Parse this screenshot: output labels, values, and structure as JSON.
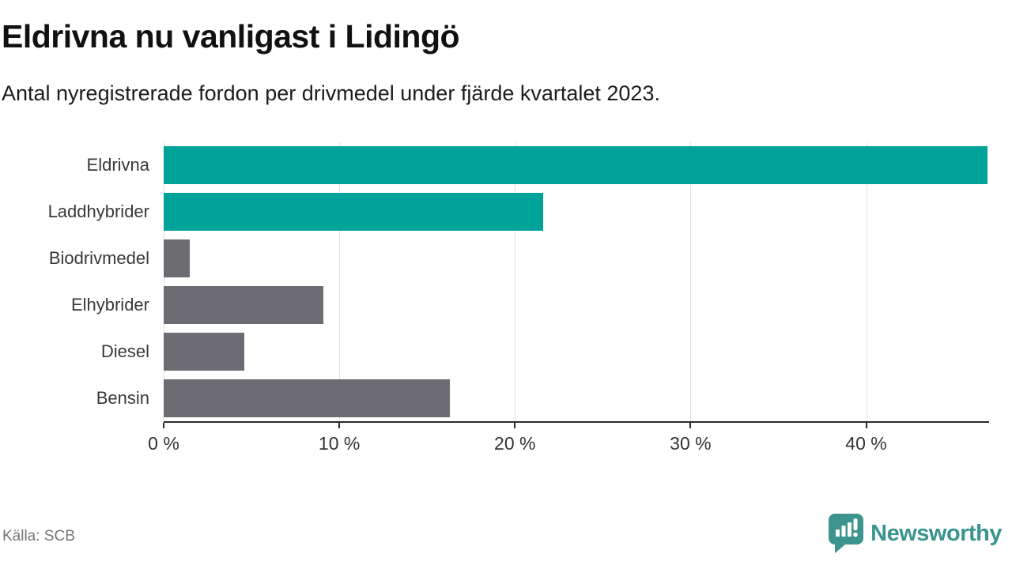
{
  "header": {
    "title": "Eldrivna nu vanligast i Lidingö",
    "subtitle": "Antal nyregistrerade fordon per drivmedel under fjärde kvartalet 2023."
  },
  "chart_data": {
    "type": "bar",
    "orientation": "horizontal",
    "title": "Eldrivna nu vanligast i Lidingö",
    "subtitle": "Antal nyregistrerade fordon per drivmedel under fjärde kvartalet 2023.",
    "categories": [
      "Eldrivna",
      "Laddhybrider",
      "Biodrivmedel",
      "Elhybrider",
      "Diesel",
      "Bensin"
    ],
    "values": [
      46.9,
      21.6,
      1.5,
      9.1,
      4.6,
      16.3
    ],
    "unit": "%",
    "xlim": [
      0,
      47
    ],
    "xticks": [
      0,
      10,
      20,
      30,
      40
    ],
    "xtick_labels": [
      "0 %",
      "10 %",
      "20 %",
      "30 %",
      "40 %"
    ],
    "bar_colors": [
      "#00a39a",
      "#00a39a",
      "#6c6c72",
      "#6c6c72",
      "#6c6c72",
      "#6c6c72"
    ],
    "grid": true,
    "legend": false
  },
  "colors": {
    "highlight": "#00a39a",
    "default_bar": "#6c6c72",
    "gridline": "#e2e2e2",
    "axis": "#2b2b2b",
    "brand": "#399490"
  },
  "footer": {
    "source": "Källa: SCB",
    "brand": "Newsworthy"
  }
}
